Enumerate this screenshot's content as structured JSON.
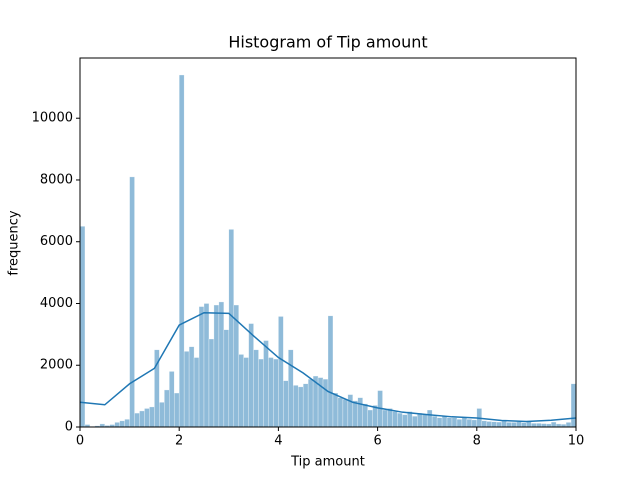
{
  "chart_data": {
    "type": "histogram",
    "title": "Histogram of Tip amount",
    "x_label": "Tip amount",
    "y_label": "frequency",
    "color": "#1f77b4",
    "bins": [
      0,
      0.1,
      0.2,
      0.3,
      0.4,
      0.5,
      0.6,
      0.7,
      0.8,
      0.9,
      1,
      1.1,
      1.2,
      1.3,
      1.4,
      1.5,
      1.6,
      1.7,
      1.8,
      1.9,
      2,
      2.1,
      2.2,
      2.3,
      2.4,
      2.5,
      2.6,
      2.7,
      2.8,
      2.9,
      3,
      3.1,
      3.2,
      3.3,
      3.4,
      3.5,
      3.6,
      3.7,
      3.8,
      3.9,
      4,
      4.1,
      4.2,
      4.3,
      4.4,
      4.5,
      4.6,
      4.7,
      4.8,
      4.9,
      5,
      5.1,
      5.2,
      5.3,
      5.4,
      5.5,
      5.6,
      5.7,
      5.8,
      5.9,
      6,
      6.1,
      6.2,
      6.3,
      6.4,
      6.5,
      6.6,
      6.7,
      6.8,
      6.9,
      7,
      7.1,
      7.2,
      7.3,
      7.4,
      7.5,
      7.6,
      7.7,
      7.8,
      7.9,
      8,
      8.1,
      8.2,
      8.3,
      8.4,
      8.5,
      8.6,
      8.7,
      8.8,
      8.9,
      9,
      9.1,
      9.2,
      9.3,
      9.4,
      9.5,
      9.6,
      9.7,
      9.8,
      9.9,
      10
    ],
    "values": [
      6500,
      80,
      20,
      40,
      100,
      50,
      80,
      150,
      200,
      250,
      8100,
      450,
      520,
      600,
      650,
      2500,
      800,
      1200,
      1800,
      1100,
      11400,
      2450,
      2600,
      2250,
      3900,
      4000,
      2850,
      3950,
      4050,
      3150,
      6400,
      3950,
      2350,
      2250,
      3350,
      2500,
      2200,
      2800,
      2250,
      2200,
      3580,
      1500,
      2500,
      1350,
      1300,
      1400,
      1550,
      1650,
      1600,
      1550,
      3600,
      1100,
      950,
      900,
      1050,
      850,
      950,
      750,
      550,
      700,
      1180,
      550,
      600,
      500,
      450,
      400,
      500,
      350,
      450,
      400,
      550,
      350,
      300,
      350,
      300,
      300,
      250,
      300,
      250,
      230,
      600,
      200,
      180,
      170,
      160,
      200,
      150,
      150,
      170,
      140,
      200,
      120,
      120,
      110,
      100,
      160,
      100,
      90,
      150,
      1400
    ],
    "kde": {
      "x": [
        0,
        0.5,
        1,
        1.5,
        2,
        2.5,
        3,
        3.5,
        4,
        4.5,
        5,
        5.5,
        6,
        6.5,
        7,
        7.5,
        8,
        8.5,
        9,
        9.5,
        10
      ],
      "values": [
        800,
        720,
        1400,
        1900,
        3300,
        3700,
        3680,
        2950,
        2250,
        1750,
        1150,
        800,
        620,
        480,
        400,
        330,
        290,
        210,
        180,
        220,
        290
      ]
    },
    "xlim": [
      0,
      10
    ],
    "xticks": [
      0,
      2,
      4,
      6,
      8,
      10
    ],
    "ylim": [
      0,
      11950
    ],
    "yticks": [
      0,
      2000,
      4000,
      6000,
      8000,
      10000
    ]
  }
}
